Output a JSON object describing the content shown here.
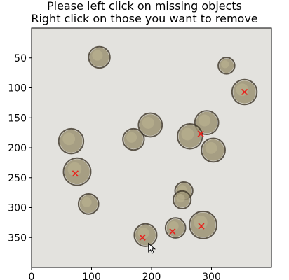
{
  "window": {
    "title_line1": "Please left click on missing objects",
    "title_line2": "Right click on those you want to remove"
  },
  "axes": {
    "xlim": [
      0,
      400
    ],
    "ylim": [
      400,
      0
    ],
    "x_ticks": [
      0,
      100,
      200,
      300
    ],
    "y_ticks": [
      50,
      100,
      150,
      200,
      250,
      300,
      350
    ],
    "x_tick_labels": [
      "0",
      "100",
      "200",
      "300"
    ],
    "y_tick_labels": [
      "50",
      "100",
      "150",
      "200",
      "250",
      "300",
      "350"
    ]
  },
  "colors": {
    "image_background": "#e3e2de",
    "cell_fill": "#9b9273",
    "cell_ring": "#3b3324",
    "marker": "#e8201c"
  },
  "image_objects": [
    {
      "x": 113,
      "y": 49,
      "r": 16
    },
    {
      "x": 325,
      "y": 63,
      "r": 12
    },
    {
      "x": 355,
      "y": 107,
      "r": 19
    },
    {
      "x": 198,
      "y": 162,
      "r": 18
    },
    {
      "x": 292,
      "y": 158,
      "r": 18
    },
    {
      "x": 170,
      "y": 186,
      "r": 16
    },
    {
      "x": 66,
      "y": 189,
      "r": 19
    },
    {
      "x": 264,
      "y": 181,
      "r": 19
    },
    {
      "x": 303,
      "y": 204,
      "r": 18
    },
    {
      "x": 76,
      "y": 240,
      "r": 21
    },
    {
      "x": 95,
      "y": 294,
      "r": 15
    },
    {
      "x": 254,
      "y": 272,
      "r": 13
    },
    {
      "x": 251,
      "y": 287,
      "r": 13
    },
    {
      "x": 190,
      "y": 346,
      "r": 17
    },
    {
      "x": 240,
      "y": 334,
      "r": 15
    },
    {
      "x": 286,
      "y": 329,
      "r": 21
    }
  ],
  "detections": [
    {
      "x": 355,
      "y": 107
    },
    {
      "x": 282,
      "y": 177
    },
    {
      "x": 73,
      "y": 243
    },
    {
      "x": 283,
      "y": 331
    },
    {
      "x": 235,
      "y": 340
    },
    {
      "x": 185,
      "y": 350
    }
  ],
  "cursor": {
    "x": 195,
    "y": 360
  }
}
